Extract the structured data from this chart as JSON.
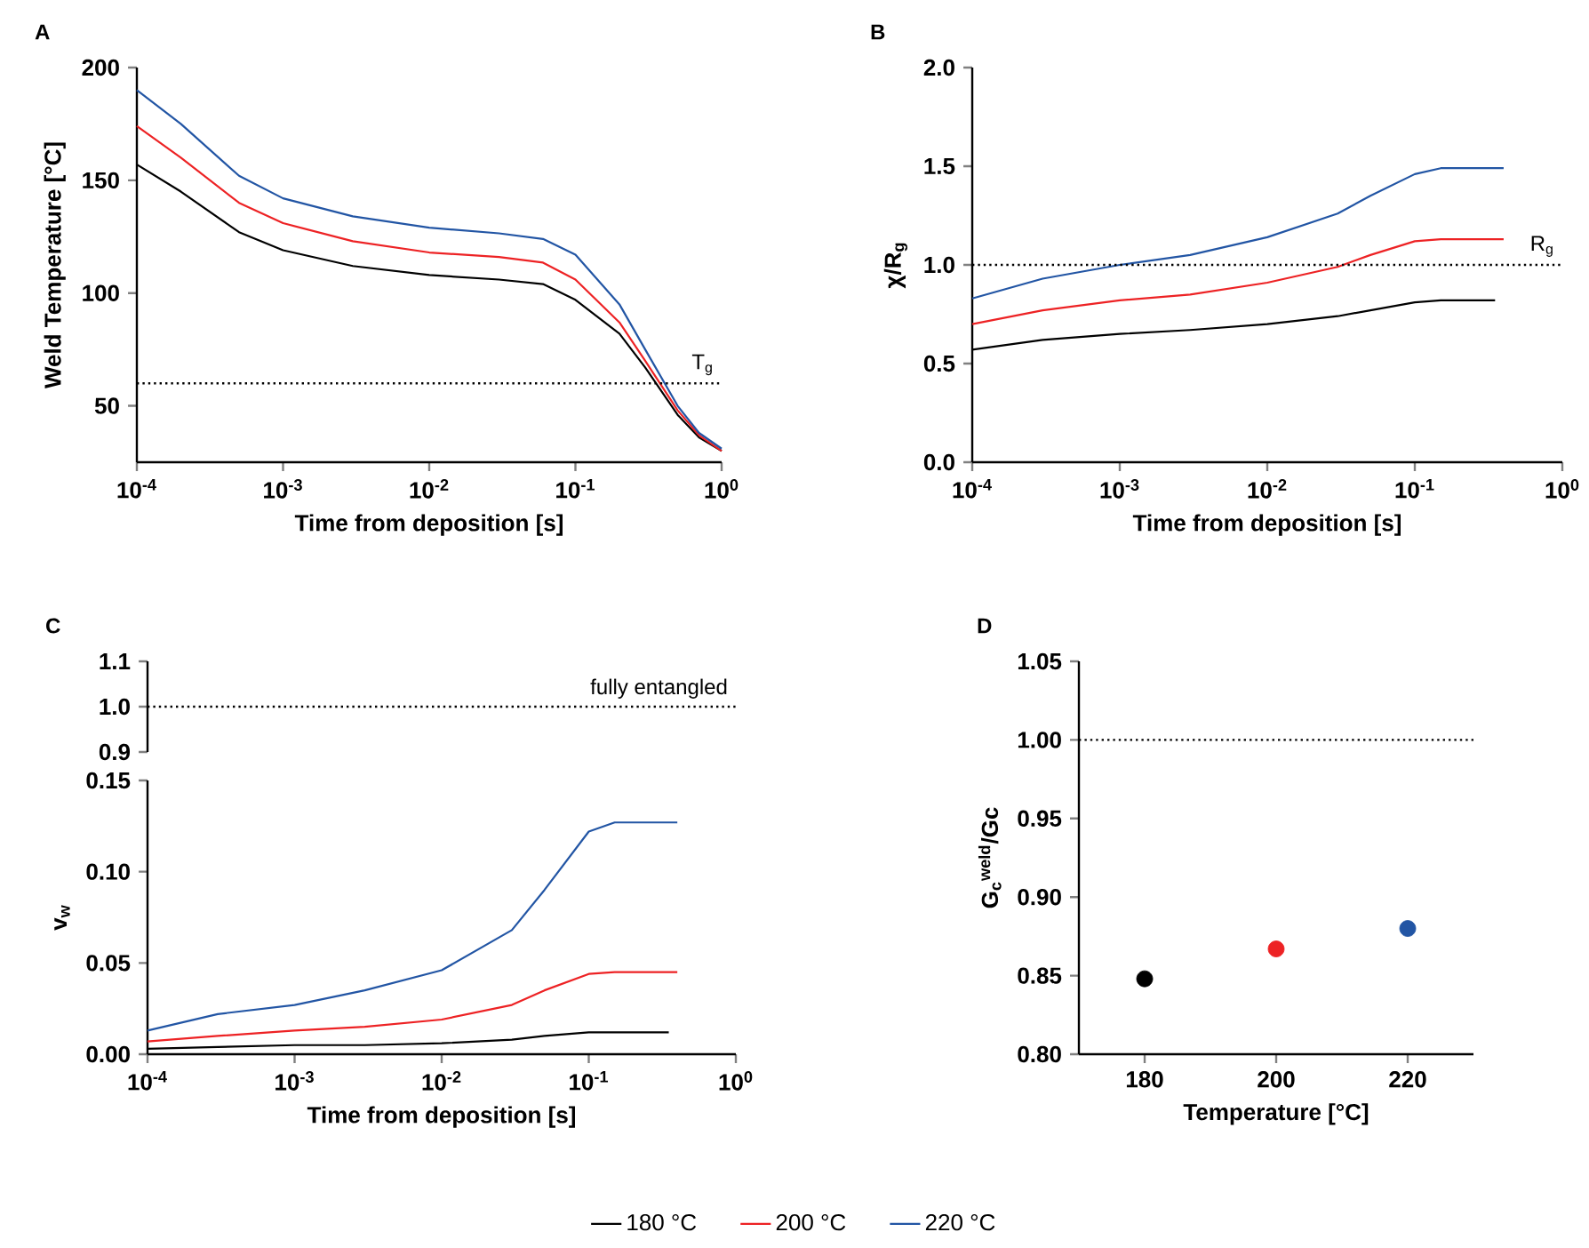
{
  "chart_data": [
    {
      "type": "line",
      "title": "A",
      "xlabel": "Time from deposition [s]",
      "ylabel": "Weld Temperature [°C]",
      "log": "x",
      "xlim": [
        0.0001,
        1
      ],
      "ylim": [
        25,
        200
      ],
      "xticks": [
        {
          "value": 0.0001,
          "label": "10$^{-4}$"
        },
        {
          "value": 0.001,
          "label": "10$^{-3}$"
        },
        {
          "value": 0.01,
          "label": "10$^{-2}$"
        },
        {
          "value": 0.1,
          "label": "10$^{-1}$"
        },
        {
          "value": 1,
          "label": "10$^{0}$"
        }
      ],
      "yticks": [
        50,
        100,
        150,
        200
      ],
      "x": [
        0.0001,
        0.0002,
        0.0005,
        0.001,
        0.003,
        0.01,
        0.03,
        0.06,
        0.1,
        0.2,
        0.3,
        0.5,
        0.7,
        1
      ],
      "series": [
        {
          "color": "#000000",
          "values": [
            157,
            145,
            127,
            119,
            112,
            108,
            106,
            104,
            97,
            82,
            67,
            46,
            36,
            30
          ]
        },
        {
          "color": "#ed2224",
          "values": [
            174,
            160,
            140,
            131,
            123,
            118,
            116,
            113.5,
            106,
            87,
            70,
            48,
            37,
            30
          ]
        },
        {
          "color": "#2255a4",
          "values": [
            190,
            175,
            152,
            142,
            134,
            129,
            126.5,
            124,
            117,
            95,
            75,
            50,
            38,
            31
          ]
        }
      ],
      "ref_lines": [
        {
          "axis": "y",
          "value": 60,
          "label": "T$_{g}$",
          "line_style": "dotted"
        }
      ]
    },
    {
      "type": "line",
      "title": "B",
      "xlabel": "Time from deposition [s]",
      "ylabel": "χ/R$_{g}$",
      "log": "x",
      "xlim": [
        0.0001,
        1
      ],
      "ylim": [
        0,
        2
      ],
      "xticks": [
        {
          "value": 0.0001,
          "label": "10$^{-4}$"
        },
        {
          "value": 0.001,
          "label": "10$^{-3}$"
        },
        {
          "value": 0.01,
          "label": "10$^{-2}$"
        },
        {
          "value": 0.1,
          "label": "10$^{-1}$"
        },
        {
          "value": 1,
          "label": "10$^{0}$"
        }
      ],
      "yticks": [
        {
          "value": 0,
          "label": "0.0"
        },
        {
          "value": 0.5,
          "label": "0.5"
        },
        {
          "value": 1,
          "label": "1.0"
        },
        {
          "value": 1.5,
          "label": "1.5"
        },
        {
          "value": 2,
          "label": "2.0"
        }
      ],
      "series": [
        {
          "color": "#000000",
          "x": [
            0.0001,
            0.0003,
            0.001,
            0.003,
            0.01,
            0.03,
            0.05,
            0.1,
            0.15,
            0.35
          ],
          "values": [
            0.57,
            0.62,
            0.65,
            0.67,
            0.7,
            0.74,
            0.77,
            0.81,
            0.82,
            0.82
          ]
        },
        {
          "color": "#ed2224",
          "x": [
            0.0001,
            0.0003,
            0.001,
            0.003,
            0.01,
            0.03,
            0.05,
            0.1,
            0.15,
            0.4
          ],
          "values": [
            0.7,
            0.77,
            0.82,
            0.85,
            0.91,
            0.99,
            1.05,
            1.12,
            1.13,
            1.13
          ]
        },
        {
          "color": "#2255a4",
          "x": [
            0.0001,
            0.0003,
            0.001,
            0.003,
            0.01,
            0.03,
            0.05,
            0.1,
            0.15,
            0.4
          ],
          "values": [
            0.83,
            0.93,
            1.0,
            1.05,
            1.14,
            1.26,
            1.35,
            1.46,
            1.49,
            1.49
          ]
        }
      ],
      "ref_lines": [
        {
          "axis": "y",
          "value": 1,
          "label": "R$_{g}$",
          "line_style": "dotted"
        }
      ]
    },
    {
      "type": "line",
      "title": "C",
      "log": "x",
      "tick_labels": "y",
      "xlim": [
        0.0001,
        1
      ],
      "ylim": [
        0.9,
        1.1
      ],
      "yticks": [
        {
          "value": 0.9,
          "label": "0.9"
        },
        {
          "value": 1,
          "label": "1.0"
        },
        {
          "value": 1.1,
          "label": "1.1"
        }
      ],
      "ref_lines": [
        {
          "axis": "y",
          "value": 1,
          "label": "fully entangled",
          "line_style": "dotted"
        }
      ]
    },
    {
      "type": "line",
      "xlabel": "Time from deposition [s]",
      "ylabel": "v$_{w}$",
      "log": "x",
      "legend": "bottom",
      "xlim": [
        0.0001,
        1
      ],
      "ylim": [
        0,
        0.15
      ],
      "xticks": [
        {
          "value": 0.0001,
          "label": "10$^{-4}$"
        },
        {
          "value": 0.001,
          "label": "10$^{-3}$"
        },
        {
          "value": 0.01,
          "label": "10$^{-2}$"
        },
        {
          "value": 0.1,
          "label": "10$^{-1}$"
        },
        {
          "value": 1,
          "label": "10$^{0}$"
        }
      ],
      "yticks": [
        {
          "value": 0,
          "label": "0.00"
        },
        {
          "value": 0.05,
          "label": "0.05"
        },
        {
          "value": 0.1,
          "label": "0.10"
        },
        {
          "value": 0.15,
          "label": "0.15"
        }
      ],
      "series": [
        {
          "name": "180 °C",
          "color": "#000000",
          "x": [
            0.0001,
            0.0003,
            0.001,
            0.003,
            0.01,
            0.03,
            0.05,
            0.1,
            0.15,
            0.35
          ],
          "values": [
            0.003,
            0.004,
            0.005,
            0.005,
            0.006,
            0.008,
            0.01,
            0.012,
            0.012,
            0.012
          ]
        },
        {
          "name": "200 °C",
          "color": "#ed2224",
          "x": [
            0.0001,
            0.0003,
            0.001,
            0.003,
            0.01,
            0.03,
            0.05,
            0.1,
            0.15,
            0.4
          ],
          "values": [
            0.007,
            0.01,
            0.013,
            0.015,
            0.019,
            0.027,
            0.035,
            0.044,
            0.045,
            0.045
          ]
        },
        {
          "name": "220 °C",
          "color": "#2255a4",
          "x": [
            0.0001,
            0.0003,
            0.001,
            0.003,
            0.01,
            0.03,
            0.05,
            0.1,
            0.15,
            0.4
          ],
          "values": [
            0.013,
            0.022,
            0.027,
            0.035,
            0.046,
            0.068,
            0.09,
            0.122,
            0.127,
            0.127
          ]
        }
      ]
    },
    {
      "type": "scatter",
      "title": "D",
      "xlabel": "Temperature [°C]",
      "ylabel": "G$_{c}$$^{weld}$/Gc",
      "marker": "circle",
      "xlim": [
        170,
        230
      ],
      "ylim": [
        0.8,
        1.05
      ],
      "xticks": [
        180,
        200,
        220
      ],
      "yticks": [
        {
          "value": 0.8,
          "label": "0.80"
        },
        {
          "value": 0.85,
          "label": "0.85"
        },
        {
          "value": 0.9,
          "label": "0.90"
        },
        {
          "value": 0.95,
          "label": "0.95"
        },
        {
          "value": 1,
          "label": "1.00"
        },
        {
          "value": 1.05,
          "label": "1.05"
        }
      ],
      "x": [
        180,
        200,
        220
      ],
      "values": [
        0.848,
        0.867,
        0.88
      ],
      "colors": [
        "#000000",
        "#ed2224",
        "#2255a4"
      ],
      "ref_lines": [
        {
          "axis": "y",
          "value": 1,
          "line_style": "dotted"
        }
      ]
    }
  ]
}
